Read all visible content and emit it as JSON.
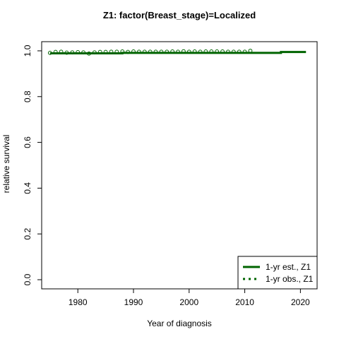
{
  "chart_data": {
    "type": "line",
    "title": "Z1: factor(Breast_stage)=Localized",
    "xlabel": "Year of diagnosis",
    "ylabel": "relative survival",
    "xlim": [
      1973.5,
      2023
    ],
    "ylim": [
      -0.04,
      1.04
    ],
    "x_ticks": [
      1980,
      1990,
      2000,
      2010,
      2020
    ],
    "x_tick_labels": [
      "1980",
      "1990",
      "2000",
      "2010",
      "2020"
    ],
    "y_ticks": [
      0.0,
      0.2,
      0.4,
      0.6,
      0.8,
      1.0
    ],
    "y_tick_labels": [
      "0.0",
      "0.2",
      "0.4",
      "0.6",
      "0.8",
      "1.0"
    ],
    "grid": false,
    "legend_position": "bottom-right",
    "series": [
      {
        "name": "1-yr est., Z1",
        "kind": "line",
        "color": "#006400",
        "x": [
          1975,
          1988,
          1988,
          2016.5,
          2016.5,
          2021
        ],
        "y": [
          0.989,
          0.989,
          0.991,
          0.991,
          0.995,
          0.995
        ]
      },
      {
        "name": "1-yr obs., Z1",
        "kind": "points",
        "color": "#006400",
        "x": [
          1975,
          1976,
          1977,
          1978,
          1979,
          1980,
          1981,
          1982,
          1983,
          1984,
          1985,
          1986,
          1987,
          1988,
          1989,
          1990,
          1991,
          1992,
          1993,
          1994,
          1995,
          1996,
          1997,
          1998,
          1999,
          2000,
          2001,
          2002,
          2003,
          2004,
          2005,
          2006,
          2007,
          2008,
          2009,
          2010,
          2011
        ],
        "y": [
          0.991,
          0.995,
          0.996,
          0.992,
          0.993,
          0.994,
          0.993,
          0.988,
          0.993,
          0.995,
          0.995,
          0.996,
          0.996,
          0.997,
          0.995,
          0.997,
          0.996,
          0.996,
          0.996,
          0.996,
          0.996,
          0.996,
          0.997,
          0.996,
          0.998,
          0.996,
          0.997,
          0.996,
          0.997,
          0.997,
          0.997,
          0.997,
          0.996,
          0.996,
          0.996,
          0.996,
          1.0
        ]
      }
    ]
  }
}
